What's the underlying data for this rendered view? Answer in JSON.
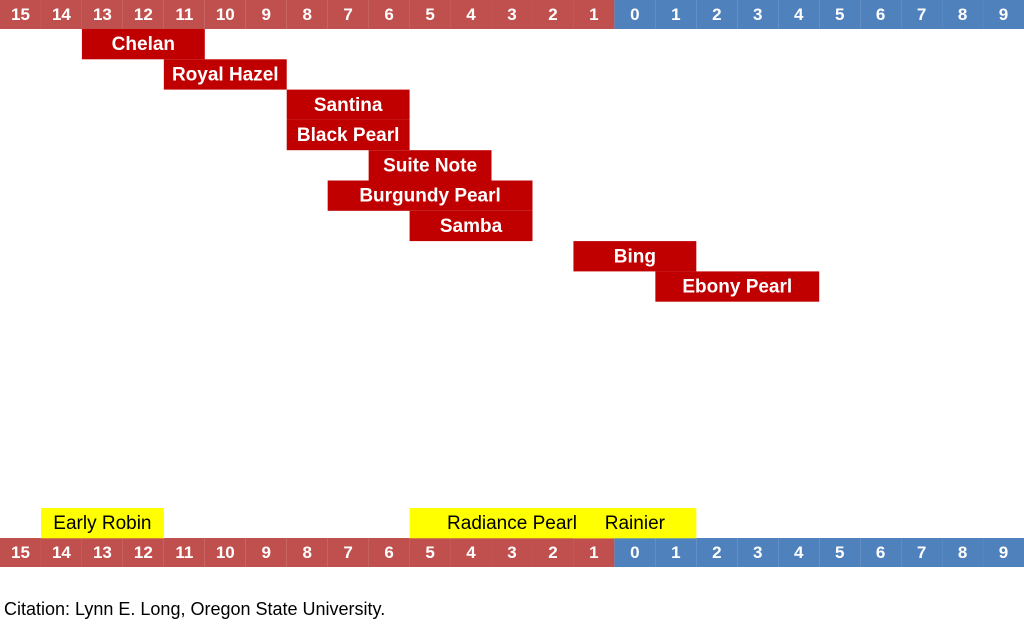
{
  "chart_data": {
    "type": "timeline",
    "xlim": [
      -15.5,
      9.5
    ],
    "xticks": [
      {
        "value": -15,
        "label": "15"
      },
      {
        "value": -14,
        "label": "14"
      },
      {
        "value": -13,
        "label": "13"
      },
      {
        "value": -12,
        "label": "12"
      },
      {
        "value": -11,
        "label": "11"
      },
      {
        "value": -10,
        "label": "10"
      },
      {
        "value": -9,
        "label": "9"
      },
      {
        "value": -8,
        "label": "8"
      },
      {
        "value": -7,
        "label": "7"
      },
      {
        "value": -6,
        "label": "6"
      },
      {
        "value": -5,
        "label": "5"
      },
      {
        "value": -4,
        "label": "4"
      },
      {
        "value": -3,
        "label": "3"
      },
      {
        "value": -2,
        "label": "2"
      },
      {
        "value": -1,
        "label": "1"
      },
      0,
      1,
      2,
      3,
      4,
      5,
      6,
      7,
      8,
      9
    ],
    "before_color": "#c0504d",
    "after_color": "#4f81bd",
    "groups": [
      {
        "color": "#c00000",
        "text_color": "#ffffff",
        "bars": [
          {
            "label": "Chelan",
            "start": -13.5,
            "end": -10.5
          },
          {
            "label": "Royal Hazel",
            "start": -11.5,
            "end": -8.5
          },
          {
            "label": "Santina",
            "start": -8.5,
            "end": -5.5
          },
          {
            "label": "Black Pearl",
            "start": -8.5,
            "end": -5.5
          },
          {
            "label": "Suite Note",
            "start": -6.5,
            "end": -3.5
          },
          {
            "label": "Burgundy Pearl",
            "start": -7.5,
            "end": -2.5
          },
          {
            "label": "Samba",
            "start": -5.5,
            "end": -2.5
          },
          {
            "label": "Bing",
            "start": -1.5,
            "end": 1.5
          },
          {
            "label": "Ebony Pearl",
            "start": 0.5,
            "end": 4.5
          }
        ]
      },
      {
        "color": "#ffff00",
        "text_color": "#000000",
        "bars": [
          {
            "label": "Early Robin",
            "start": -14.5,
            "end": -11.5
          },
          {
            "label": "Radiance Pearl",
            "start": -5.5,
            "end": -0.5
          },
          {
            "label": "Rainier",
            "start": -1.5,
            "end": 1.5
          }
        ]
      }
    ],
    "citation": "Citation: Lynn E. Long, Oregon State University."
  }
}
